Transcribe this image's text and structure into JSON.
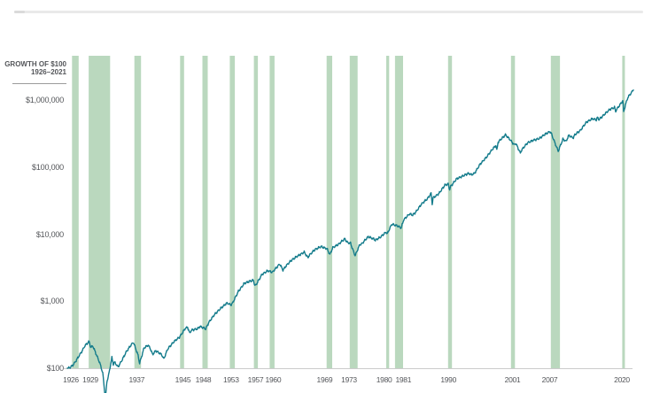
{
  "header": {
    "title_line1": "GROWTH OF $100",
    "title_line2": "1926–2021"
  },
  "chart_data": {
    "type": "line",
    "title": "Growth of $100, 1926–2021",
    "xlabel": "",
    "ylabel": "",
    "y_scale": "log",
    "x_range": [
      1926,
      2022
    ],
    "y_range_visible": [
      100,
      1000000
    ],
    "grid": false,
    "legend": "none",
    "colors": {
      "line": "#137b8b",
      "recession_band": "#bad8be",
      "axis": "#cbcbcb",
      "text": "#54565a"
    },
    "y_axis_labels": [
      {
        "text": "$1,000,000",
        "value": 1000000
      },
      {
        "text": "$100,000",
        "value": 100000
      },
      {
        "text": "$10,000",
        "value": 10000
      },
      {
        "text": "$1,000",
        "value": 1000
      },
      {
        "text": "$100",
        "value": 100
      }
    ],
    "x_axis_ticks": [
      {
        "text": "1926",
        "year": 1926
      },
      {
        "text": "1929",
        "year": 1929
      },
      {
        "text": "1937",
        "year": 1937
      },
      {
        "text": "1945",
        "year": 1945
      },
      {
        "text": "1948",
        "year": 1948
      },
      {
        "text": "1953",
        "year": 1953
      },
      {
        "text": "1957",
        "year": 1957
      },
      {
        "text": "1960",
        "year": 1960
      },
      {
        "text": "1969",
        "year": 1969
      },
      {
        "text": "1973",
        "year": 1973
      },
      {
        "text": "1980",
        "year": 1980
      },
      {
        "text": "1981",
        "year": 1981
      },
      {
        "text": "1990",
        "year": 1990
      },
      {
        "text": "2001",
        "year": 2001
      },
      {
        "text": "2007",
        "year": 2007
      },
      {
        "text": "2020",
        "year": 2020
      }
    ],
    "recessions": {
      "description": "shaded vertical bands (recession periods)",
      "periods": [
        [
          1926.79,
          1927.92
        ],
        [
          1929.62,
          1933.25
        ],
        [
          1937.37,
          1938.5
        ],
        [
          1945.12,
          1945.8
        ],
        [
          1948.9,
          1949.8
        ],
        [
          1953.54,
          1954.4
        ],
        [
          1957.62,
          1958.3
        ],
        [
          1960.29,
          1961.12
        ],
        [
          1969.95,
          1970.9
        ],
        [
          1973.87,
          1975.2
        ],
        [
          1980.05,
          1980.55
        ],
        [
          1981.54,
          1982.9
        ],
        [
          1990.54,
          1991.2
        ],
        [
          2001.2,
          2001.87
        ],
        [
          2007.95,
          2009.5
        ],
        [
          2020.12,
          2020.45
        ]
      ]
    },
    "series": [
      {
        "name": "Growth of $100 (stocks, log scale)",
        "points": [
          [
            1926.0,
            100
          ],
          [
            1926.5,
            103
          ],
          [
            1927.0,
            112
          ],
          [
            1927.5,
            129
          ],
          [
            1928.0,
            153
          ],
          [
            1928.5,
            181
          ],
          [
            1929.0,
            220
          ],
          [
            1929.7,
            248
          ],
          [
            1930.0,
            202
          ],
          [
            1930.3,
            219
          ],
          [
            1931.0,
            152
          ],
          [
            1931.5,
            120
          ],
          [
            1932.0,
            86
          ],
          [
            1932.45,
            34
          ],
          [
            1932.7,
            62
          ],
          [
            1933.0,
            79
          ],
          [
            1933.55,
            145
          ],
          [
            1933.8,
            116
          ],
          [
            1934.0,
            122
          ],
          [
            1934.6,
            105
          ],
          [
            1935.0,
            120
          ],
          [
            1936.0,
            177
          ],
          [
            1937.2,
            245
          ],
          [
            1938.0,
            154
          ],
          [
            1938.25,
            118
          ],
          [
            1939.0,
            202
          ],
          [
            1939.72,
            222
          ],
          [
            1940.0,
            201
          ],
          [
            1940.45,
            161
          ],
          [
            1941.0,
            181
          ],
          [
            1942.0,
            160
          ],
          [
            1942.35,
            138
          ],
          [
            1943.0,
            193
          ],
          [
            1944.0,
            243
          ],
          [
            1945.0,
            291
          ],
          [
            1946.0,
            397
          ],
          [
            1946.4,
            411
          ],
          [
            1946.75,
            331
          ],
          [
            1947.0,
            365
          ],
          [
            1948.0,
            385
          ],
          [
            1948.45,
            420
          ],
          [
            1949.0,
            407
          ],
          [
            1949.45,
            381
          ],
          [
            1950.0,
            483
          ],
          [
            1951.0,
            636
          ],
          [
            1952.0,
            789
          ],
          [
            1953.0,
            934
          ],
          [
            1953.7,
            881
          ],
          [
            1954.0,
            925
          ],
          [
            1955.0,
            1411
          ],
          [
            1956.0,
            1857
          ],
          [
            1957.0,
            1979
          ],
          [
            1957.55,
            2052
          ],
          [
            1957.8,
            1682
          ],
          [
            1958.0,
            1766
          ],
          [
            1959.0,
            2532
          ],
          [
            1960.0,
            2836
          ],
          [
            1960.8,
            2702
          ],
          [
            1961.0,
            2850
          ],
          [
            1962.0,
            3616
          ],
          [
            1962.55,
            2905
          ],
          [
            1963.0,
            3302
          ],
          [
            1964.0,
            4055
          ],
          [
            1965.0,
            4724
          ],
          [
            1966.0,
            5314
          ],
          [
            1966.15,
            5450
          ],
          [
            1966.78,
            4455
          ],
          [
            1967.0,
            4777
          ],
          [
            1968.0,
            5924
          ],
          [
            1969.0,
            6581
          ],
          [
            1970.0,
            6022
          ],
          [
            1970.5,
            4905
          ],
          [
            1971.0,
            6263
          ],
          [
            1972.0,
            7159
          ],
          [
            1973.0,
            8519
          ],
          [
            1973.5,
            7420
          ],
          [
            1974.0,
            7266
          ],
          [
            1974.78,
            4810
          ],
          [
            1975.0,
            5341
          ],
          [
            1975.55,
            6910
          ],
          [
            1976.0,
            7328
          ],
          [
            1977.0,
            9072
          ],
          [
            1978.0,
            8418
          ],
          [
            1978.2,
            8110
          ],
          [
            1979.0,
            8974
          ],
          [
            1980.0,
            10625
          ],
          [
            1980.25,
            10110
          ],
          [
            1981.0,
            14068
          ],
          [
            1982.0,
            13379
          ],
          [
            1982.6,
            12310
          ],
          [
            1983.0,
            16242
          ],
          [
            1984.0,
            19896
          ],
          [
            1984.55,
            19020
          ],
          [
            1985.0,
            21150
          ],
          [
            1986.0,
            27960
          ],
          [
            1987.0,
            33132
          ],
          [
            1987.65,
            40120
          ],
          [
            1987.85,
            28540
          ],
          [
            1988.0,
            34855
          ],
          [
            1989.0,
            40711
          ],
          [
            1990.0,
            53535
          ],
          [
            1990.55,
            56080
          ],
          [
            1990.8,
            46110
          ],
          [
            1991.0,
            51821
          ],
          [
            1992.0,
            67627
          ],
          [
            1993.0,
            72834
          ],
          [
            1994.0,
            80118
          ],
          [
            1994.5,
            77050
          ],
          [
            1995.0,
            81159
          ],
          [
            1996.0,
            111513
          ],
          [
            1997.0,
            137272
          ],
          [
            1998.0,
            183121
          ],
          [
            1998.65,
            211200
          ],
          [
            1998.8,
            175600
          ],
          [
            1999.0,
            235494
          ],
          [
            2000.0,
            284947
          ],
          [
            2000.25,
            301000
          ],
          [
            2001.0,
            259017
          ],
          [
            2001.75,
            216300
          ],
          [
            2002.0,
            228194
          ],
          [
            2002.78,
            160500
          ],
          [
            2003.0,
            177763
          ],
          [
            2004.0,
            228781
          ],
          [
            2005.0,
            253718
          ],
          [
            2006.0,
            266151
          ],
          [
            2007.0,
            308202
          ],
          [
            2007.78,
            341200
          ],
          [
            2008.0,
            325153
          ],
          [
            2008.85,
            206000
          ],
          [
            2009.2,
            170800
          ],
          [
            2010.0,
            259131
          ],
          [
            2010.55,
            241300
          ],
          [
            2011.0,
            298260
          ],
          [
            2011.78,
            271400
          ],
          [
            2012.0,
            304523
          ],
          [
            2013.0,
            353247
          ],
          [
            2014.0,
            467699
          ],
          [
            2015.0,
            531774
          ],
          [
            2015.65,
            510200
          ],
          [
            2015.85,
            545000
          ],
          [
            2016.1,
            506300
          ],
          [
            2017.0,
            603925
          ],
          [
            2018.0,
            735580
          ],
          [
            2018.75,
            781000
          ],
          [
            2018.95,
            662400
          ],
          [
            2019.0,
            703215
          ],
          [
            2020.0,
            924727
          ],
          [
            2020.15,
            981000
          ],
          [
            2020.3,
            668000
          ],
          [
            2020.6,
            852000
          ],
          [
            2021.0,
            1094877
          ],
          [
            2021.5,
            1261000
          ],
          [
            2021.95,
            1409107
          ]
        ]
      }
    ]
  }
}
